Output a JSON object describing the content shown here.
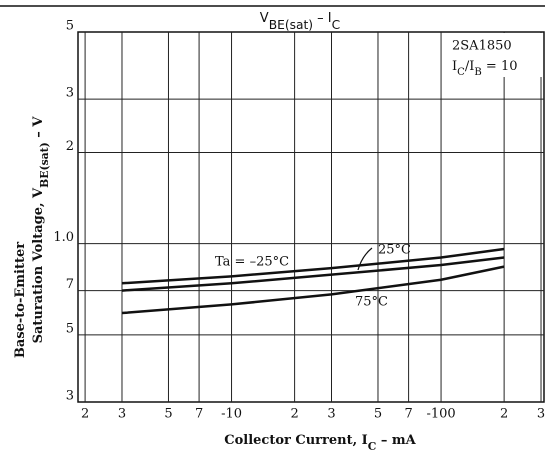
{
  "chart_data": {
    "type": "line",
    "log_x": true,
    "log_y": true,
    "grid": true,
    "title": [
      "V",
      "BE(sat)",
      "  –  I",
      "C"
    ],
    "x_label": [
      "Collector Current, I",
      "C",
      " – mA"
    ],
    "y_label": [
      [
        "Base-to-Emitter"
      ],
      [
        "Saturation Voltage, V",
        "BE(sat)",
        " – V"
      ]
    ],
    "annotation": [
      "2SA1850",
      [
        "I",
        "C",
        "/I",
        "B",
        " = 10"
      ]
    ],
    "xlim": [
      1.85,
      310
    ],
    "xticks": [
      2,
      3,
      5,
      7,
      {
        "value": 10,
        "label": "-10"
      },
      {
        "value": 20,
        "label": "2"
      },
      {
        "value": 30,
        "label": "3"
      },
      {
        "value": 50,
        "label": "5"
      },
      {
        "value": 70,
        "label": "7"
      },
      {
        "value": 100,
        "label": "-100"
      },
      {
        "value": 200,
        "label": "2"
      },
      {
        "value": 300,
        "label": "3"
      }
    ],
    "ylim": [
      0.3,
      5
    ],
    "yticks": [
      {
        "value": 0.3,
        "label": "3"
      },
      {
        "value": 0.5,
        "label": "5"
      },
      {
        "value": 0.7,
        "label": "7"
      },
      {
        "value": 1,
        "label": "1.0"
      },
      2,
      3,
      5
    ],
    "x": [
      3,
      10,
      30,
      100,
      200
    ],
    "series": [
      {
        "name": "Ta = –25°C",
        "color": "#111",
        "values": [
          0.74,
          0.78,
          0.83,
          0.9,
          0.96
        ]
      },
      {
        "name": "25°C",
        "color": "#111",
        "values": [
          0.7,
          0.74,
          0.79,
          0.85,
          0.9
        ]
      },
      {
        "name": "75°C",
        "color": "#111",
        "values": [
          0.59,
          0.63,
          0.68,
          0.76,
          0.84
        ]
      }
    ]
  }
}
